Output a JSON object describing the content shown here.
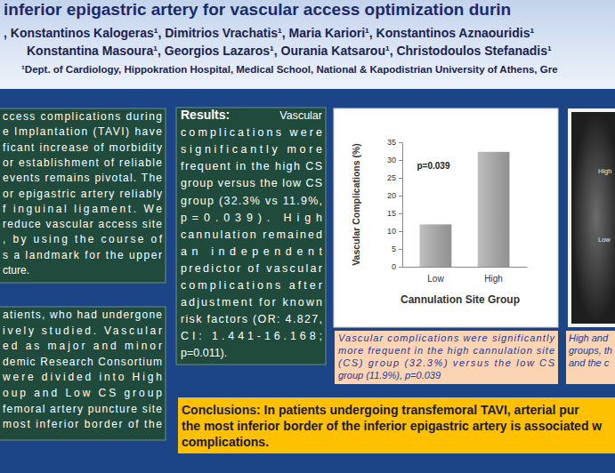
{
  "poster": {
    "header": {
      "title": "inferior epigastric artery for vascular access optimization durin",
      "authors": [
        ", Konstantinos Kalogeras¹, Dimitrios Vrachatis¹, Maria Kariori¹, Konstantinos Aznaouridis¹",
        "Konstantina Masoura¹, Georgios Lazaros¹, Ourania Katsarou¹, Christodoulos Stefanadis¹"
      ],
      "affiliation": "¹Dept. of Cardiology, Hippokration Hospital, Medical School, National & Kapodistrian University of Athens, Gre"
    },
    "intro": {
      "lines": [
        "ccess complications during",
        "e Implantation (TAVI) have",
        "ficant increase of morbidity",
        "or establishment of reliable",
        "events remains pivotal. The",
        "or epigastric artery reliably",
        "f inguinal ligament. We",
        "reduce vascular access site",
        ", by using the course of",
        "s a landmark for the upper",
        "cture."
      ]
    },
    "methods": {
      "lines": [
        "atients, who had undergone",
        "ively studied. Vascular",
        "ed as major and minor",
        "demic Research Consortium",
        "were divided into High",
        "oup and Low CS group",
        "femoral artery puncture site",
        "most inferior border of the"
      ]
    },
    "results": {
      "heading": "Results:",
      "lines": [
        "Vascular",
        "complications were",
        "significantly more",
        "frequent in the high CS",
        "group versus the low CS",
        "group (32.3% vs 11.9%,",
        "p=0.039). High",
        "cannulation remained",
        "an independent",
        "predictor of vascular",
        "complications after",
        "adjustment for known",
        "risk factors (OR: 4.827,",
        "CI: 1.441-16.168;",
        "p=0.011)."
      ]
    },
    "chart_caption": {
      "lines": [
        "Vascular complications were significantly",
        "more frequent in the high cannulation site",
        "(CS) group (32.3%) versus the low CS",
        "group (11.9%), p=0.039"
      ]
    },
    "figure2": {
      "labels": [
        "High",
        "Low"
      ],
      "caption": [
        "High and",
        "groups, th",
        "and the c"
      ]
    },
    "conclusions": {
      "heading": "Conclusions:",
      "lines": [
        " In patients undergoing transfemoral TAVI, arterial pur",
        "the most inferior border of the inferior epigastric artery is associated w",
        "complications."
      ]
    }
  },
  "chart_data": {
    "type": "bar",
    "categories": [
      "Low",
      "High"
    ],
    "values": [
      11.9,
      32.3
    ],
    "color": "#a6a6a6",
    "ylim": [
      0,
      35
    ],
    "yticks": [
      0,
      5,
      10,
      15,
      20,
      25,
      30,
      35
    ],
    "grid": false,
    "x_label": "Cannulation Site Group",
    "y_label": "Vascular Complications (%)",
    "annotation": "p=0.039"
  }
}
